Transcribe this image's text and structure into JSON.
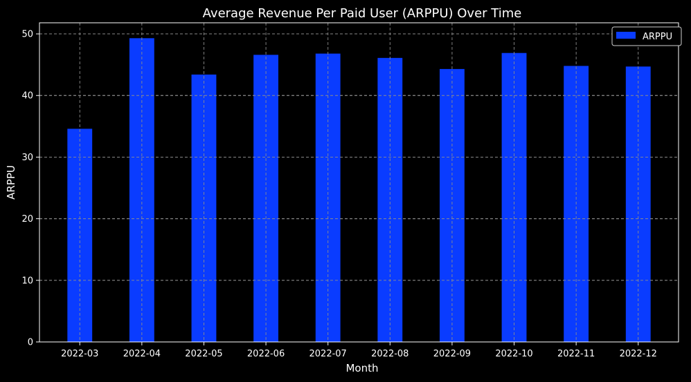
{
  "chart_data": {
    "type": "bar",
    "title": "Average Revenue Per Paid User (ARPPU) Over Time",
    "xlabel": "Month",
    "ylabel": "ARPPU",
    "categories": [
      "2022-03",
      "2022-04",
      "2022-05",
      "2022-06",
      "2022-07",
      "2022-08",
      "2022-09",
      "2022-10",
      "2022-11",
      "2022-12"
    ],
    "series": [
      {
        "name": "ARPPU",
        "values": [
          34.6,
          49.3,
          43.4,
          46.6,
          46.8,
          46.1,
          44.3,
          46.9,
          44.8,
          44.7
        ]
      }
    ],
    "ylim": [
      0,
      51.8
    ],
    "yticks": [
      0,
      10,
      20,
      30,
      40,
      50
    ],
    "grid": true,
    "legend_position": "top-right",
    "colors": {
      "background": "#000000",
      "bar": "#0a3cff",
      "text": "#ffffff",
      "grid": "#8c8c8c",
      "axis": "#ffffff"
    }
  }
}
